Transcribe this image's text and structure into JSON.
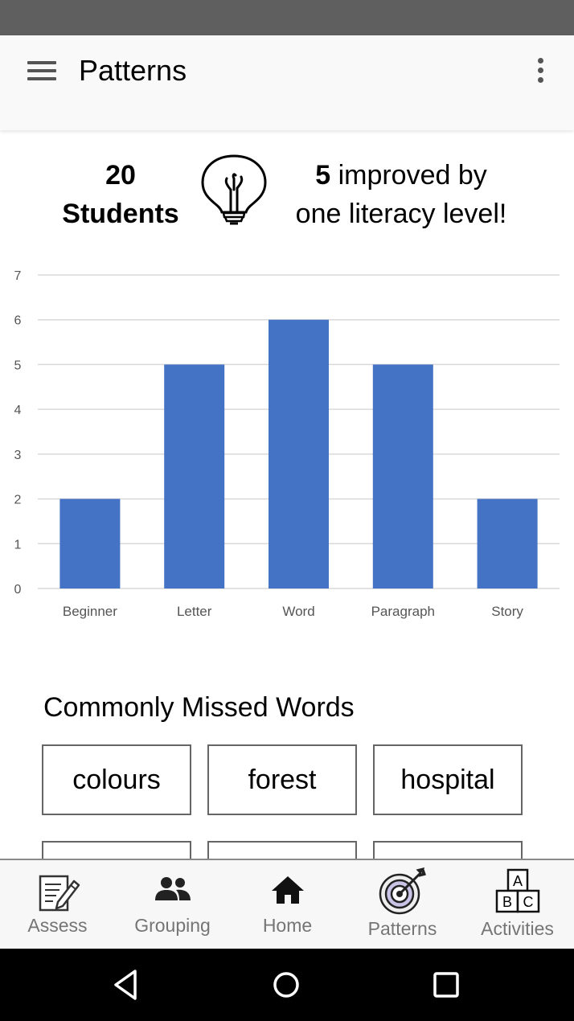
{
  "app_bar": {
    "title": "Patterns"
  },
  "summary": {
    "student_count": "20",
    "student_label": "Students",
    "improved_count": "5",
    "improved_line1": "improved by",
    "improved_line2": "one literacy level!"
  },
  "chart_data": {
    "type": "bar",
    "categories": [
      "Beginner",
      "Letter",
      "Word",
      "Paragraph",
      "Story"
    ],
    "values": [
      2,
      5,
      6,
      5,
      2
    ],
    "ylim": [
      0,
      7
    ],
    "yticks": [
      0,
      1,
      2,
      3,
      4,
      5,
      6,
      7
    ],
    "color": "#4472c4",
    "grid": true
  },
  "missed_words": {
    "title": "Commonly Missed Words",
    "words": [
      "colours",
      "forest",
      "hospital"
    ]
  },
  "bottom_nav": {
    "items": [
      {
        "label": "Assess",
        "icon": "edit-document-icon"
      },
      {
        "label": "Grouping",
        "icon": "people-icon"
      },
      {
        "label": "Home",
        "icon": "home-icon"
      },
      {
        "label": "Patterns",
        "icon": "target-icon"
      },
      {
        "label": "Activities",
        "icon": "abc-blocks-icon"
      }
    ]
  },
  "colors": {
    "accent_bar": "#4472c4",
    "app_bar": "#f9f9f9",
    "status_bar": "#5f5f5f"
  }
}
